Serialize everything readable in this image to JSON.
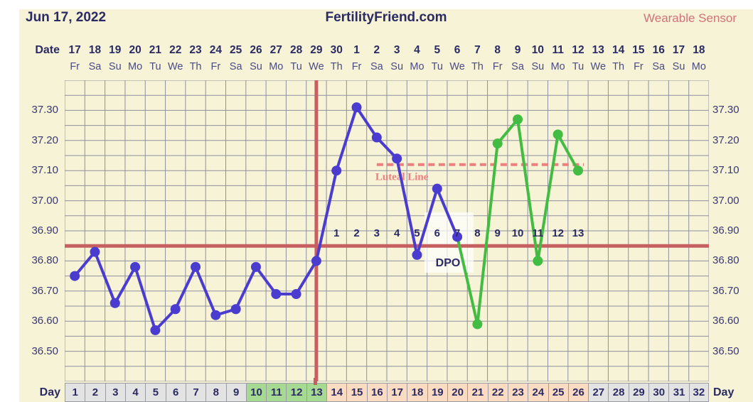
{
  "header": {
    "date": "Jun 17, 2022",
    "title": "FertilityFriend.com",
    "wearable_link": "Wearable Sensor"
  },
  "axis": {
    "date_row_label": "Date",
    "day_row_label_left": "Day",
    "day_row_label_right": "Day",
    "dates": [
      "17",
      "18",
      "19",
      "20",
      "21",
      "22",
      "23",
      "24",
      "25",
      "26",
      "27",
      "28",
      "29",
      "30",
      "1",
      "2",
      "3",
      "4",
      "5",
      "6",
      "7",
      "8",
      "9",
      "10",
      "11",
      "12",
      "13",
      "14",
      "15",
      "16",
      "17",
      "18"
    ],
    "weekdays": [
      "Fr",
      "Sa",
      "Su",
      "Mo",
      "Tu",
      "We",
      "Th",
      "Fr",
      "Sa",
      "Su",
      "Mo",
      "Tu",
      "We",
      "Th",
      "Fr",
      "Sa",
      "Su",
      "Mo",
      "Tu",
      "We",
      "Th",
      "Fr",
      "Sa",
      "Su",
      "Mo",
      "Tu",
      "We",
      "Th",
      "Fr",
      "Sa",
      "Su",
      "Mo"
    ],
    "y_tick_labels": [
      "37.30",
      "37.20",
      "37.10",
      "37.00",
      "36.90",
      "36.80",
      "36.70",
      "36.60",
      "36.50"
    ]
  },
  "chart_data": {
    "type": "line",
    "title": "FertilityFriend.com",
    "ylim": [
      36.4,
      37.4
    ],
    "y_major_step": 0.1,
    "y_minor_step": 0.05,
    "x_days_total": 32,
    "grid": true,
    "series": [
      {
        "name": "bbt-temperature",
        "color": "#4b3cd0",
        "days": [
          1,
          2,
          3,
          4,
          5,
          6,
          7,
          8,
          9,
          10,
          11,
          12,
          13,
          14,
          15,
          16,
          17,
          18,
          19,
          20
        ],
        "values": [
          36.75,
          36.83,
          36.66,
          36.78,
          36.57,
          36.64,
          36.78,
          36.62,
          36.64,
          36.78,
          36.69,
          36.69,
          36.8,
          37.1,
          37.31,
          37.21,
          37.14,
          36.82,
          37.04,
          36.88
        ]
      },
      {
        "name": "wearable-sensor",
        "color": "#43bc43",
        "days": [
          21,
          22,
          23,
          24,
          25,
          26
        ],
        "values": [
          36.59,
          37.19,
          37.27,
          36.8,
          37.22,
          37.1
        ]
      }
    ],
    "coverline_temp": 36.85,
    "ovulation_day": 13,
    "luteal_line": {
      "temp": 37.12,
      "label": "Luteal Line",
      "start_day": 16,
      "end_day": 26
    },
    "dpo_labels": {
      "label": "DPO",
      "start_day": 14,
      "numbers": [
        "1",
        "2",
        "3",
        "4",
        "5",
        "6",
        "7",
        "8",
        "9",
        "10",
        "11",
        "12",
        "13"
      ]
    }
  },
  "day_row": {
    "cells": [
      {
        "day": "1",
        "phase": "gray"
      },
      {
        "day": "2",
        "phase": "gray"
      },
      {
        "day": "3",
        "phase": "gray"
      },
      {
        "day": "4",
        "phase": "gray"
      },
      {
        "day": "5",
        "phase": "gray"
      },
      {
        "day": "6",
        "phase": "gray"
      },
      {
        "day": "7",
        "phase": "gray"
      },
      {
        "day": "8",
        "phase": "gray"
      },
      {
        "day": "9",
        "phase": "gray"
      },
      {
        "day": "10",
        "phase": "green"
      },
      {
        "day": "11",
        "phase": "green"
      },
      {
        "day": "12",
        "phase": "green"
      },
      {
        "day": "13",
        "phase": "green"
      },
      {
        "day": "14",
        "phase": "peach"
      },
      {
        "day": "15",
        "phase": "peach"
      },
      {
        "day": "16",
        "phase": "peach"
      },
      {
        "day": "17",
        "phase": "peach"
      },
      {
        "day": "18",
        "phase": "peach"
      },
      {
        "day": "19",
        "phase": "peach"
      },
      {
        "day": "20",
        "phase": "peach"
      },
      {
        "day": "21",
        "phase": "peach"
      },
      {
        "day": "22",
        "phase": "peach"
      },
      {
        "day": "23",
        "phase": "peach"
      },
      {
        "day": "24",
        "phase": "peach"
      },
      {
        "day": "25",
        "phase": "peach"
      },
      {
        "day": "26",
        "phase": "peach"
      },
      {
        "day": "27",
        "phase": "gray"
      },
      {
        "day": "28",
        "phase": "gray"
      },
      {
        "day": "29",
        "phase": "gray"
      },
      {
        "day": "30",
        "phase": "gray"
      },
      {
        "day": "31",
        "phase": "gray"
      },
      {
        "day": "32",
        "phase": "gray"
      }
    ]
  },
  "colors": {
    "background": "#f6f3d7",
    "navy_text": "#2b2a63",
    "weekday_text": "#4b4a84",
    "grid_line": "#90909e",
    "bbt_blue": "#4b3cd0",
    "sensor_green": "#43bc43",
    "red_line": "#c75f60",
    "luteal_pink": "#ec7f7f",
    "wearable_text": "#d0737a",
    "cell_gray": "#e3e3e3",
    "cell_green": "#a6da92",
    "cell_peach": "#fbdcc2"
  }
}
